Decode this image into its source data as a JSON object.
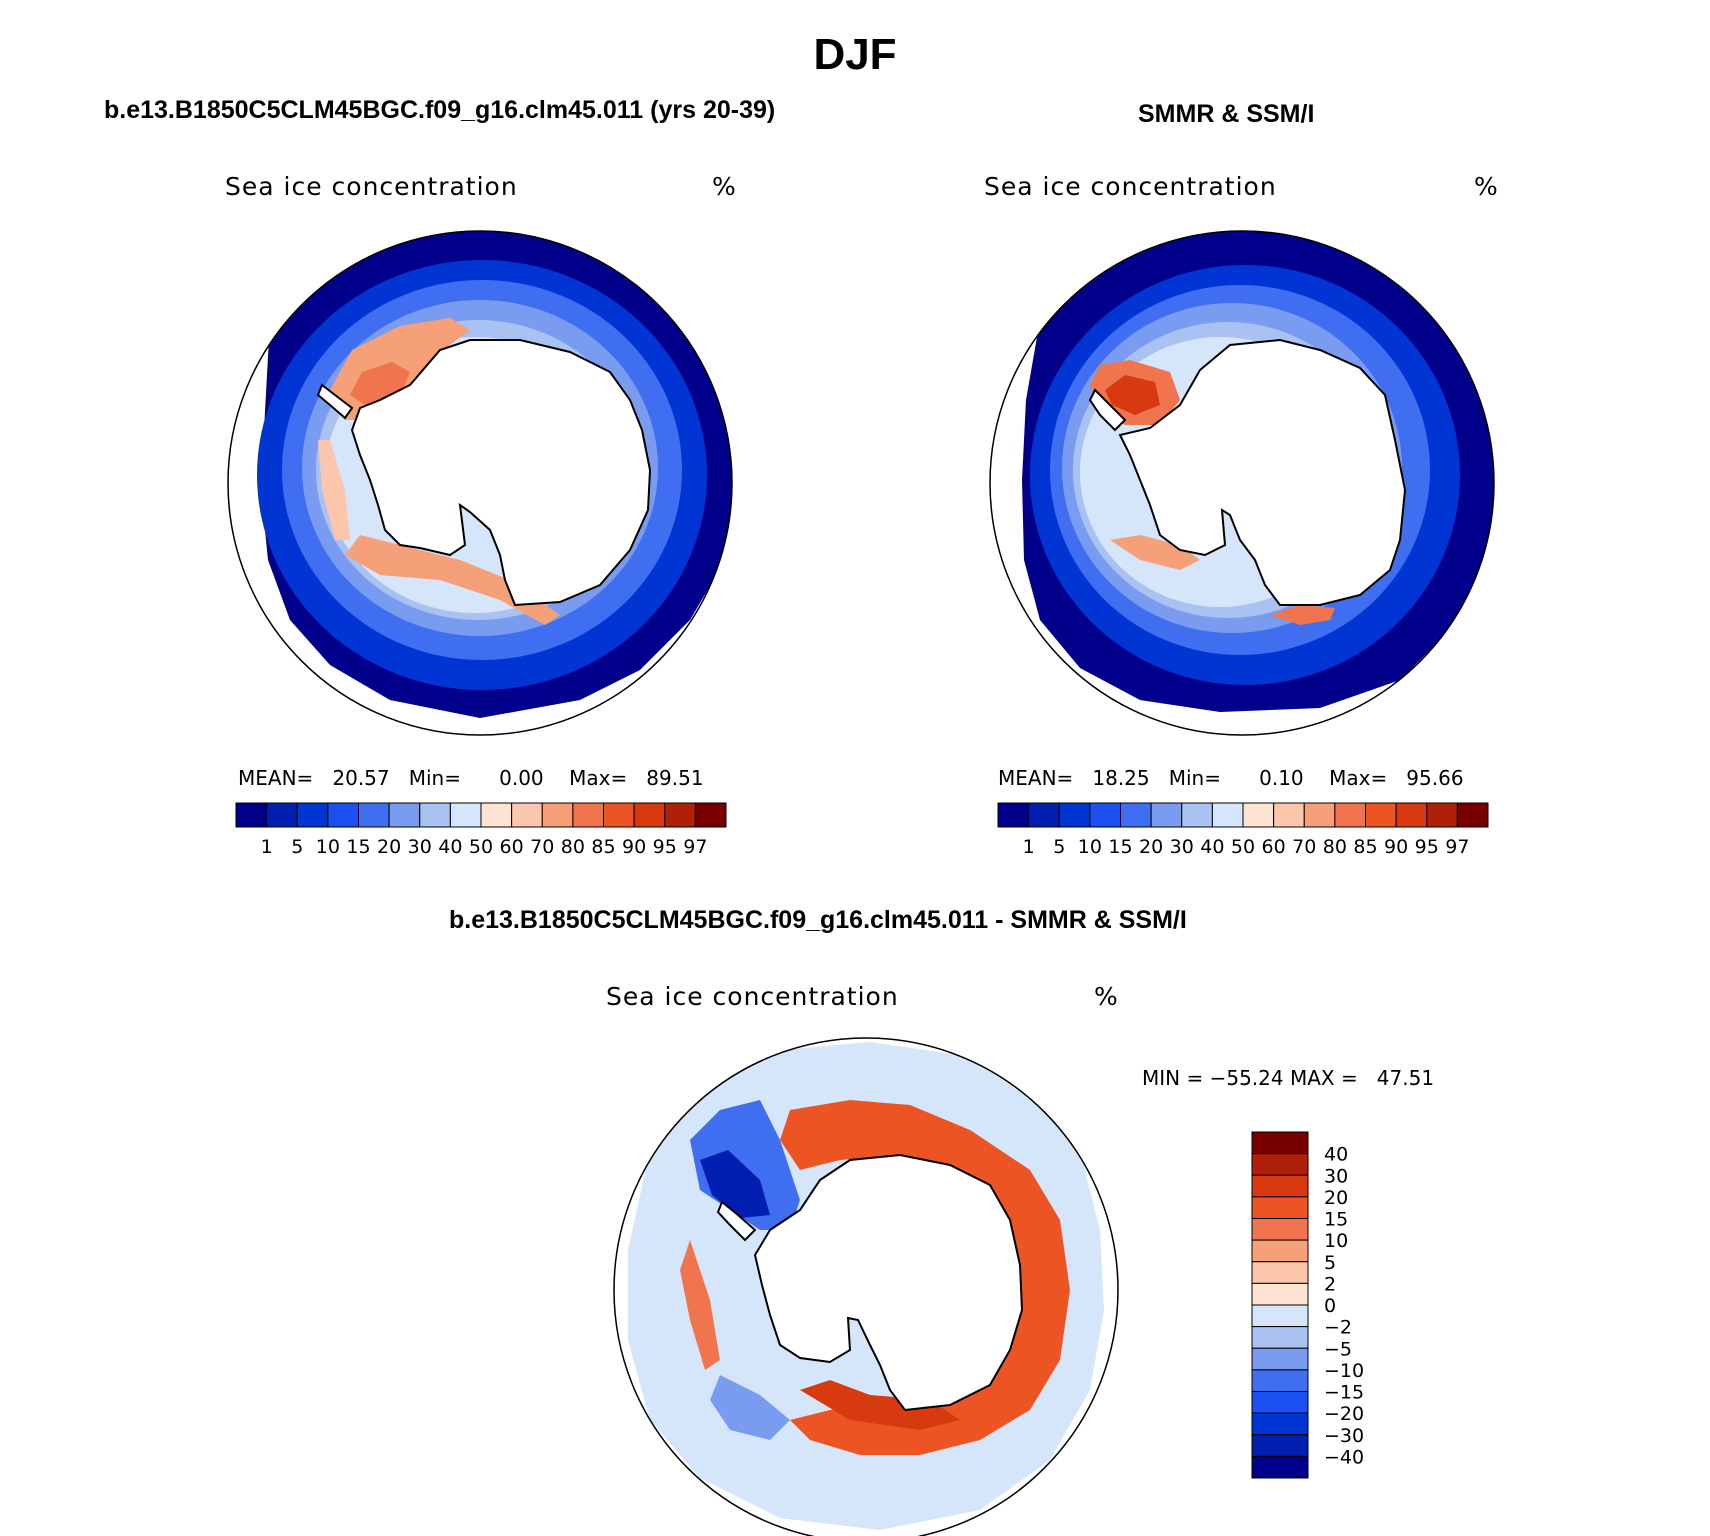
{
  "figure": {
    "title": "DJF"
  },
  "panels": [
    {
      "id": "model",
      "title": "b.e13.B1850C5CLM45BGC.f09_g16.clm45.011 (yrs 20-39)",
      "variable": "Sea ice concentration",
      "units": "%",
      "stats": {
        "mean_label": "MEAN=",
        "mean": "20.57",
        "min_label": "Min=",
        "min": "0.00",
        "max_label": "Max=",
        "max": "89.51"
      }
    },
    {
      "id": "obs",
      "title": "SMMR & SSM/I",
      "variable": "Sea ice concentration",
      "units": "%",
      "stats": {
        "mean_label": "MEAN=",
        "mean": "18.25",
        "min_label": "Min=",
        "min": "0.10",
        "max_label": "Max=",
        "max": "95.66"
      }
    },
    {
      "id": "diff",
      "title": "b.e13.B1850C5CLM45BGC.f09_g16.clm45.011 - SMMR & SSM/I",
      "variable": "Sea ice concentration",
      "units": "%",
      "stats_line": "MIN = −55.24 MAX =   47.51"
    }
  ],
  "conc_colorbar": {
    "labels": [
      "1",
      "5",
      "10",
      "15",
      "20",
      "30",
      "40",
      "50",
      "60",
      "70",
      "80",
      "85",
      "90",
      "95",
      "97"
    ],
    "colors": [
      "#00008a",
      "#001fb0",
      "#0035d4",
      "#1c50f0",
      "#3f6ef0",
      "#7a9cf0",
      "#a9c2f2",
      "#d6e6fa",
      "#fde3d2",
      "#fbc6ac",
      "#f6a07a",
      "#f0754e",
      "#ec5424",
      "#d83a10",
      "#b01f08",
      "#7a0000"
    ]
  },
  "diff_colorbar": {
    "labels": [
      "40",
      "30",
      "20",
      "15",
      "10",
      "5",
      "2",
      "0",
      "−2",
      "−5",
      "−10",
      "−15",
      "−20",
      "−30",
      "−40"
    ],
    "colors": [
      "#7a0000",
      "#b01f08",
      "#d83a10",
      "#ec5424",
      "#f0754e",
      "#f6a07a",
      "#fbc6ac",
      "#fde3d2",
      "#d6e6fa",
      "#a9c2f2",
      "#7a9cf0",
      "#3f6ef0",
      "#1c50f0",
      "#0035d4",
      "#001fb0",
      "#00008a"
    ]
  }
}
